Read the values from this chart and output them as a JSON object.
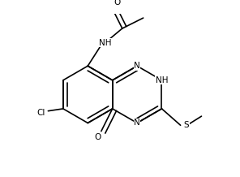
{
  "bg_color": "#ffffff",
  "figsize": [
    2.96,
    2.18
  ],
  "dpi": 100,
  "lw": 1.2,
  "fs": 7.5,
  "xlim": [
    0,
    2.96
  ],
  "ylim": [
    0,
    2.18
  ]
}
